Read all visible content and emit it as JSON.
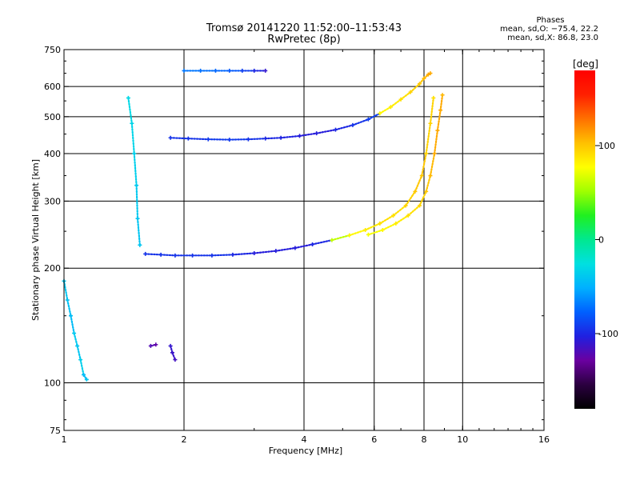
{
  "title": "Tromsø 20141220 11:52:00–11:53:43",
  "subtitle": "RwPretec (8p)",
  "phases": {
    "title": "Phases",
    "line1": "mean, sd,O: −75.4, 22.2",
    "line2": "mean, sd,X:  86.8, 23.0"
  },
  "chart_data": {
    "type": "scatter",
    "title": "Tromsø 20141220 11:52:00–11:53:43",
    "subtitle": "RwPretec (8p)",
    "xlabel": "Frequency [MHz]",
    "ylabel": "Stationary phase Virtual Height [km]",
    "x_scale": "log",
    "y_scale": "log",
    "xlim": [
      1,
      16
    ],
    "ylim": [
      75,
      750
    ],
    "x_ticks": [
      1,
      2,
      4,
      6,
      8,
      10,
      16
    ],
    "y_ticks": [
      75,
      100,
      200,
      300,
      400,
      500,
      600,
      750
    ],
    "x_grid": [
      2,
      4,
      6,
      8,
      10
    ],
    "y_grid": [
      100,
      200,
      300,
      400,
      500,
      600
    ],
    "colorbar": {
      "label": "[deg]",
      "range": [
        -180,
        180
      ],
      "ticks": [
        -100,
        0,
        100
      ],
      "colors": [
        "#000000",
        "#2b0040",
        "#6a00a0",
        "#2020e0",
        "#0060ff",
        "#00b0ff",
        "#00e0e0",
        "#00e890",
        "#20f020",
        "#a0ff00",
        "#ffff00",
        "#ffc000",
        "#ff7000",
        "#ff2000",
        "#ff0000"
      ]
    },
    "series": [
      {
        "x": [
          1.85,
          2.05,
          2.3,
          2.6,
          2.9,
          3.2,
          3.5,
          3.9,
          4.3,
          4.8,
          5.3,
          5.8,
          6.2,
          6.6,
          7.0,
          7.4,
          7.8,
          8.0,
          8.2,
          8.3
        ],
        "y": [
          440,
          438,
          436,
          435,
          436,
          438,
          440,
          445,
          452,
          462,
          475,
          492,
          510,
          530,
          555,
          580,
          610,
          630,
          645,
          650
        ],
        "phase": [
          -95,
          -95,
          -92,
          -92,
          -95,
          -100,
          -102,
          -105,
          -105,
          -100,
          -95,
          -90,
          80,
          85,
          90,
          95,
          100,
          105,
          110,
          110
        ]
      },
      {
        "x": [
          1.6,
          1.75,
          1.9,
          2.1,
          2.35,
          2.65,
          3.0,
          3.4,
          3.8,
          4.2,
          4.7,
          5.2,
          5.7,
          6.2,
          6.7,
          7.2,
          7.6,
          7.9,
          8.1,
          8.3,
          8.45
        ],
        "y": [
          218,
          217,
          216,
          216,
          216,
          217,
          219,
          222,
          226,
          231,
          237,
          244,
          252,
          262,
          275,
          292,
          318,
          350,
          400,
          480,
          560
        ],
        "phase": [
          -95,
          -95,
          -95,
          -95,
          -95,
          -100,
          -105,
          -105,
          -105,
          -100,
          60,
          80,
          85,
          90,
          90,
          95,
          100,
          100,
          95,
          95,
          90
        ]
      },
      {
        "x": [
          5.8,
          6.3,
          6.8,
          7.3,
          7.8,
          8.1,
          8.3,
          8.5,
          8.65,
          8.8,
          8.9
        ],
        "y": [
          245,
          252,
          262,
          275,
          292,
          318,
          350,
          400,
          460,
          520,
          570
        ],
        "phase": [
          75,
          80,
          85,
          90,
          95,
          100,
          105,
          110,
          110,
          110,
          105
        ]
      },
      {
        "x": [
          1.45,
          1.48,
          1.5,
          1.52,
          1.53,
          1.55
        ],
        "y": [
          560,
          480,
          400,
          330,
          270,
          230
        ],
        "phase": [
          -30,
          -32,
          -35,
          -38,
          -40,
          -40
        ]
      },
      {
        "x": [
          2.0,
          2.2,
          2.4,
          2.6,
          2.8,
          3.0,
          3.2
        ],
        "y": [
          660,
          660,
          660,
          660,
          660,
          660,
          660
        ],
        "phase": [
          -70,
          -72,
          -75,
          -80,
          -90,
          -100,
          -110
        ]
      },
      {
        "x": [
          1.0,
          1.02,
          1.04,
          1.06,
          1.08,
          1.1,
          1.12,
          1.14
        ],
        "y": [
          185,
          165,
          150,
          135,
          125,
          115,
          105,
          102
        ],
        "phase": [
          -40,
          -42,
          -45,
          -38,
          -40,
          -35,
          -45,
          -40
        ]
      },
      {
        "x": [
          1.65,
          1.7
        ],
        "y": [
          125,
          126
        ],
        "phase": [
          -120,
          -125
        ]
      },
      {
        "x": [
          1.85,
          1.87,
          1.9
        ],
        "y": [
          125,
          120,
          115
        ],
        "phase": [
          -110,
          -112,
          -115
        ]
      }
    ]
  }
}
